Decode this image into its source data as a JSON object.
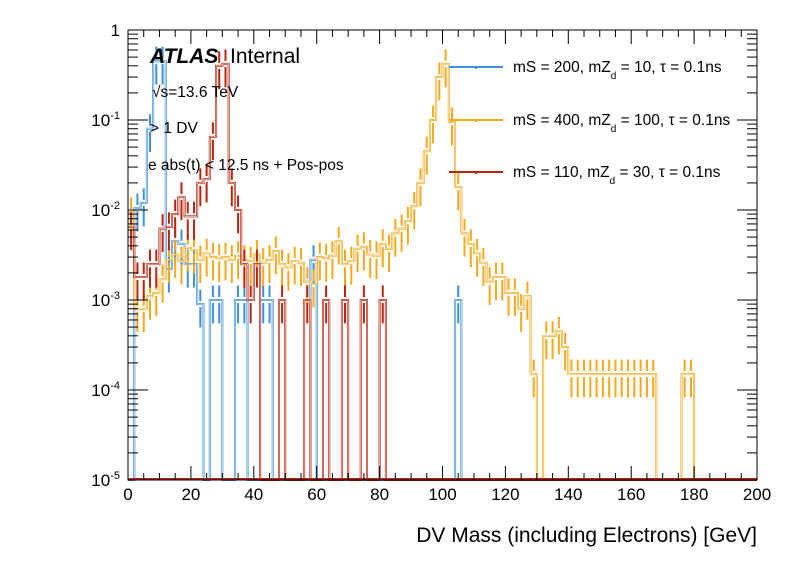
{
  "chart_data": {
    "type": "line",
    "subtype": "histogram-step-log",
    "title": "",
    "xlabel": "DV Mass (including Electrons) [GeV]",
    "ylabel": "",
    "xlim": [
      0,
      200
    ],
    "ylim": [
      1e-05,
      1
    ],
    "yscale": "log",
    "bin_width": 2,
    "x_ticks": [
      "0",
      "20",
      "40",
      "60",
      "80",
      "100",
      "120",
      "140",
      "160",
      "180",
      "200"
    ],
    "y_ticks": [
      {
        "base": "10",
        "exp": "-5"
      },
      {
        "base": "10",
        "exp": "-4"
      },
      {
        "base": "10",
        "exp": "-3"
      },
      {
        "base": "10",
        "exp": "-2"
      },
      {
        "base": "10",
        "exp": "-1"
      },
      {
        "base": "1",
        "exp": ""
      }
    ],
    "label_atlas": "ATLAS",
    "label_internal": "Internal",
    "annotations": [
      "√s=13.6 TeV",
      "> 1 DV",
      "e abs(t) < 12.5 ns + Pos-pos"
    ],
    "legend_position": "top-right",
    "series": [
      {
        "name": "mS = 200, mZd = 10, τ = 0.1ns",
        "legend_main": "mS = 200, mZ",
        "legend_sub": "d",
        "legend_tail": " = 10, τ = 0.1ns",
        "color": "#3e8fd6",
        "bins": [
          [
            2,
            0.0105
          ],
          [
            4,
            0.012
          ],
          [
            6,
            0.08
          ],
          [
            8,
            0.45
          ],
          [
            10,
            0.45
          ],
          [
            12,
            0.0022
          ],
          [
            14,
            0.0045
          ],
          [
            16,
            0.0042
          ],
          [
            18,
            0.0025
          ],
          [
            20,
            0.0025
          ],
          [
            22,
            0.0009
          ],
          [
            26,
            0.001
          ],
          [
            28,
            0.001
          ],
          [
            34,
            0.001
          ],
          [
            36,
            0.001
          ],
          [
            42,
            0.001
          ],
          [
            44,
            0.001
          ],
          [
            58,
            0.0028
          ],
          [
            104,
            0.001
          ]
        ]
      },
      {
        "name": "mS = 400, mZd = 100, τ = 0.1ns",
        "legend_main": "mS = 400, mZ",
        "legend_sub": "d",
        "legend_tail": " = 100, τ = 0.1ns",
        "color": "#f5a81c",
        "bins": [
          [
            0,
            0.0095
          ],
          [
            2,
            0.0008
          ],
          [
            4,
            0.0008
          ],
          [
            6,
            0.0011
          ],
          [
            8,
            0.0012
          ],
          [
            10,
            0.0017
          ],
          [
            12,
            0.0028
          ],
          [
            14,
            0.0032
          ],
          [
            16,
            0.0027
          ],
          [
            18,
            0.0038
          ],
          [
            20,
            0.0036
          ],
          [
            22,
            0.0028
          ],
          [
            24,
            0.0033
          ],
          [
            26,
            0.003
          ],
          [
            28,
            0.0029
          ],
          [
            30,
            0.003
          ],
          [
            32,
            0.0028
          ],
          [
            34,
            0.0031
          ],
          [
            36,
            0.0028
          ],
          [
            38,
            0.0027
          ],
          [
            40,
            0.0032
          ],
          [
            42,
            0.0026
          ],
          [
            44,
            0.0028
          ],
          [
            46,
            0.0035
          ],
          [
            48,
            0.0025
          ],
          [
            50,
            0.0023
          ],
          [
            52,
            0.0027
          ],
          [
            54,
            0.0026
          ],
          [
            56,
            0.0016
          ],
          [
            58,
            0.0015
          ],
          [
            60,
            0.003
          ],
          [
            62,
            0.0029
          ],
          [
            64,
            0.0031
          ],
          [
            66,
            0.0045
          ],
          [
            68,
            0.0025
          ],
          [
            70,
            0.0027
          ],
          [
            72,
            0.0037
          ],
          [
            74,
            0.0039
          ],
          [
            76,
            0.0032
          ],
          [
            78,
            0.0031
          ],
          [
            80,
            0.0042
          ],
          [
            82,
            0.0037
          ],
          [
            84,
            0.0055
          ],
          [
            86,
            0.0062
          ],
          [
            88,
            0.0075
          ],
          [
            90,
            0.011
          ],
          [
            92,
            0.02
          ],
          [
            94,
            0.045
          ],
          [
            96,
            0.1
          ],
          [
            98,
            0.3
          ],
          [
            100,
            0.42
          ],
          [
            102,
            0.095
          ],
          [
            104,
            0.018
          ],
          [
            106,
            0.0055
          ],
          [
            108,
            0.0042
          ],
          [
            110,
            0.0033
          ],
          [
            112,
            0.0026
          ],
          [
            114,
            0.0016
          ],
          [
            116,
            0.0018
          ],
          [
            118,
            0.0018
          ],
          [
            120,
            0.0012
          ],
          [
            122,
            0.0012
          ],
          [
            124,
            0.0008
          ],
          [
            126,
            0.0011
          ],
          [
            128,
            0.00015
          ],
          [
            132,
            0.0004
          ],
          [
            134,
            0.0004
          ],
          [
            136,
            0.00045
          ],
          [
            138,
            0.0003
          ],
          [
            140,
            0.00015
          ],
          [
            142,
            0.00015
          ],
          [
            144,
            0.00015
          ],
          [
            146,
            0.00015
          ],
          [
            148,
            0.00015
          ],
          [
            150,
            0.00015
          ],
          [
            152,
            0.00015
          ],
          [
            154,
            0.00015
          ],
          [
            156,
            0.00015
          ],
          [
            158,
            0.00015
          ],
          [
            160,
            0.00015
          ],
          [
            162,
            0.00015
          ],
          [
            164,
            0.00015
          ],
          [
            166,
            0.00015
          ],
          [
            176,
            0.00015
          ],
          [
            178,
            0.00015
          ]
        ]
      },
      {
        "name": "mS = 110, mZd = 30, τ = 0.1ns",
        "legend_main": "mS = 110, mZ",
        "legend_sub": "d",
        "legend_tail": " = 30, τ = 0.1ns",
        "color": "#b8250f",
        "bins": [
          [
            0,
            0.0065
          ],
          [
            2,
            0.0018
          ],
          [
            4,
            0.0018
          ],
          [
            6,
            0.0025
          ],
          [
            8,
            0.0025
          ],
          [
            10,
            0.0062
          ],
          [
            12,
            0.0065
          ],
          [
            14,
            0.009
          ],
          [
            16,
            0.014
          ],
          [
            18,
            0.0085
          ],
          [
            20,
            0.0085
          ],
          [
            22,
            0.02
          ],
          [
            24,
            0.022
          ],
          [
            26,
            0.065
          ],
          [
            28,
            0.4
          ],
          [
            30,
            0.42
          ],
          [
            32,
            0.02
          ],
          [
            34,
            0.01
          ],
          [
            36,
            0.0025
          ],
          [
            38,
            0.001
          ],
          [
            40,
            0.0025
          ],
          [
            48,
            0.001
          ],
          [
            56,
            0.001
          ],
          [
            62,
            0.001
          ],
          [
            68,
            0.001
          ],
          [
            74,
            0.001
          ],
          [
            80,
            0.001
          ]
        ]
      }
    ]
  }
}
